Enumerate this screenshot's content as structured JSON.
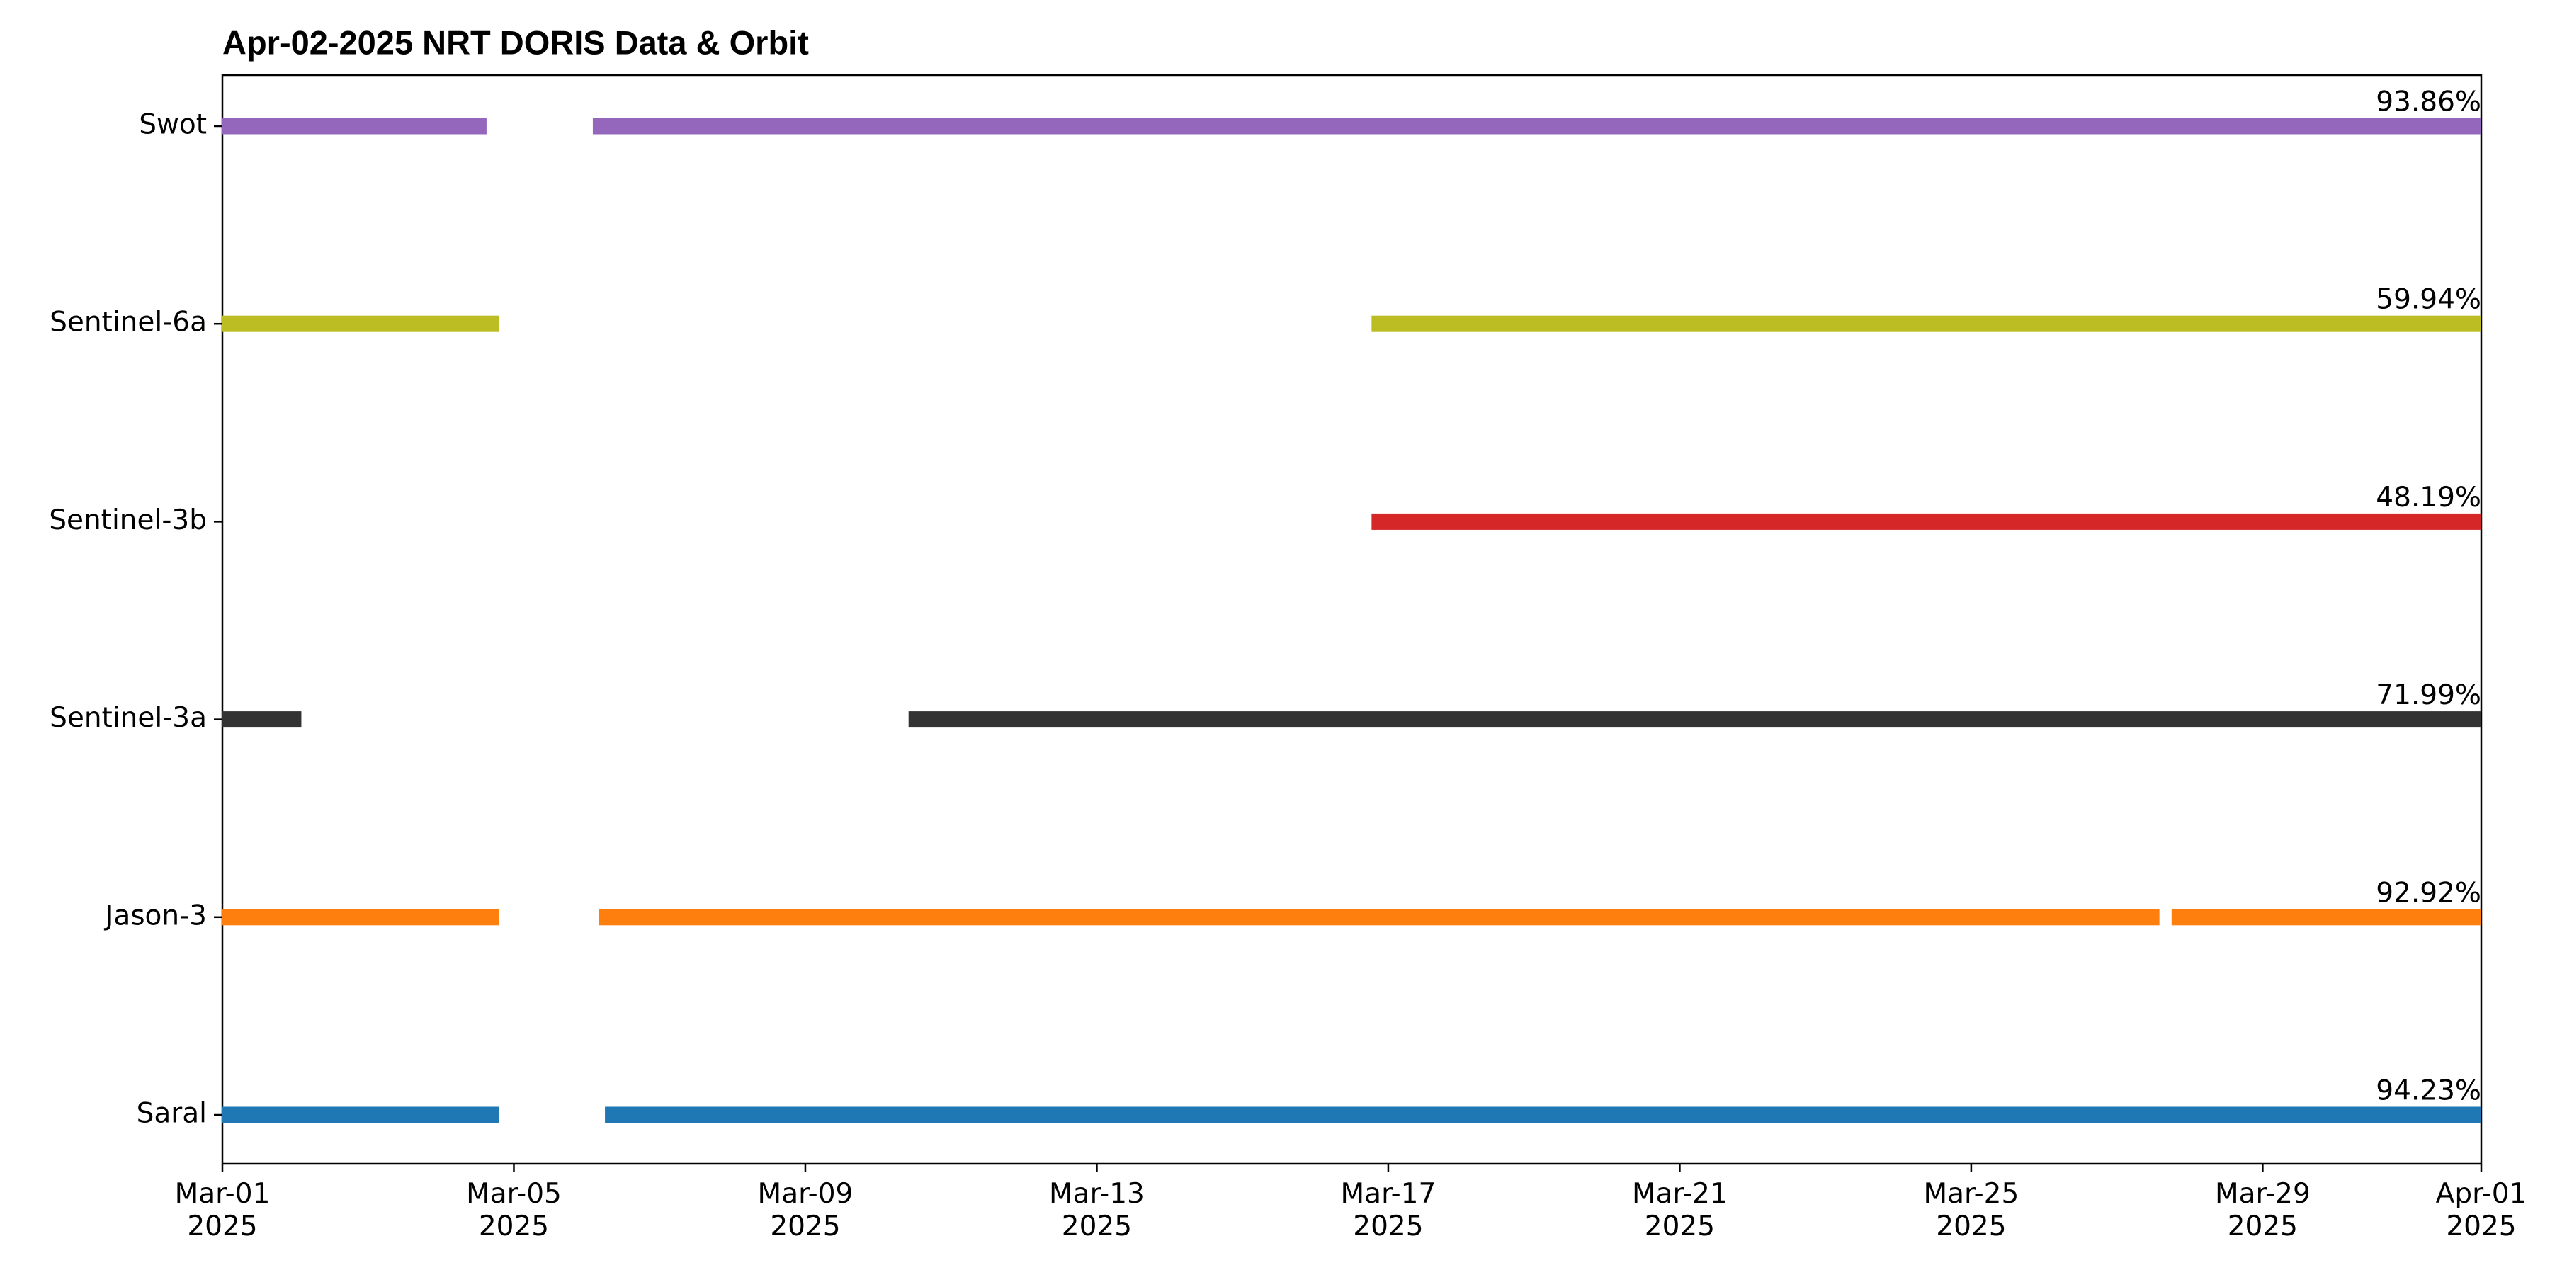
{
  "chart_data": {
    "type": "timeline",
    "title": "Apr-02-2025 NRT DORIS Data & Orbit",
    "xlim": [
      "2025-03-01",
      "2025-04-01"
    ],
    "xticks": [
      {
        "value": "2025-03-01",
        "label": "Mar-01\n2025"
      },
      {
        "value": "2025-03-05",
        "label": "Mar-05\n2025"
      },
      {
        "value": "2025-03-09",
        "label": "Mar-09\n2025"
      },
      {
        "value": "2025-03-13",
        "label": "Mar-13\n2025"
      },
      {
        "value": "2025-03-17",
        "label": "Mar-17\n2025"
      },
      {
        "value": "2025-03-21",
        "label": "Mar-21\n2025"
      },
      {
        "value": "2025-03-25",
        "label": "Mar-25\n2025"
      },
      {
        "value": "2025-03-29",
        "label": "Mar-29\n2025"
      },
      {
        "value": "2025-04-01",
        "label": "Apr-01\n2025"
      }
    ],
    "series": [
      {
        "name": "Saral",
        "color": "#1f77b4",
        "coverage": 94.23,
        "coverage_label": "94.23%",
        "segments": [
          [
            "2025-03-01",
            "2025-03-04T19:00"
          ],
          [
            "2025-03-06T06:00",
            "2025-04-01"
          ]
        ]
      },
      {
        "name": "Jason-3",
        "color": "#ff7f0e",
        "coverage": 92.92,
        "coverage_label": "92.92%",
        "segments": [
          [
            "2025-03-01",
            "2025-03-04T19:00"
          ],
          [
            "2025-03-06T04:00",
            "2025-03-27T14:00"
          ],
          [
            "2025-03-27T18:00",
            "2025-04-01"
          ]
        ]
      },
      {
        "name": "Sentinel-3a",
        "color": "#333333",
        "coverage": 71.99,
        "coverage_label": "71.99%",
        "segments": [
          [
            "2025-03-01",
            "2025-03-02T02:00"
          ],
          [
            "2025-03-10T10:00",
            "2025-04-01"
          ]
        ]
      },
      {
        "name": "Sentinel-3b",
        "color": "#d62728",
        "coverage": 48.19,
        "coverage_label": "48.19%",
        "segments": [
          [
            "2025-03-16T18:30",
            "2025-04-01"
          ]
        ]
      },
      {
        "name": "Sentinel-6a",
        "color": "#bcbd22",
        "coverage": 59.94,
        "coverage_label": "59.94%",
        "segments": [
          [
            "2025-03-01",
            "2025-03-04T19:00"
          ],
          [
            "2025-03-16T18:30",
            "2025-04-01"
          ]
        ]
      },
      {
        "name": "Swot",
        "color": "#9467bd",
        "coverage": 93.86,
        "coverage_label": "93.86%",
        "segments": [
          [
            "2025-03-01",
            "2025-03-04T15:00"
          ],
          [
            "2025-03-06T02:00",
            "2025-04-01"
          ]
        ]
      }
    ]
  }
}
